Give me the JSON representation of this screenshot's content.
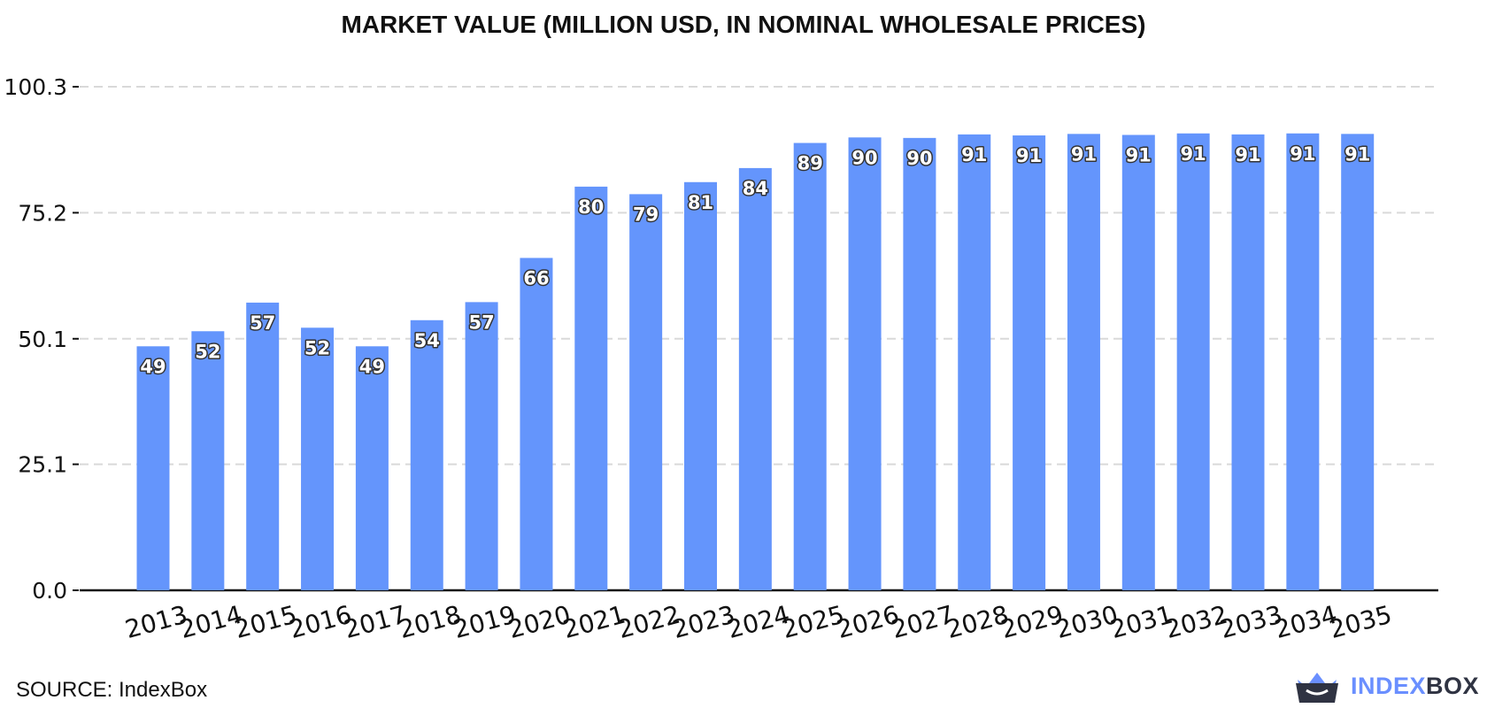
{
  "chart_data": {
    "type": "bar",
    "title": "MARKET VALUE (MILLION USD, IN NOMINAL WHOLESALE PRICES)",
    "xlabel": "",
    "ylabel": "",
    "categories": [
      "2013",
      "2014",
      "2015",
      "2016",
      "2017",
      "2018",
      "2019",
      "2020",
      "2021",
      "2022",
      "2023",
      "2024",
      "2025",
      "2026",
      "2027",
      "2028",
      "2029",
      "2030",
      "2031",
      "2032",
      "2033",
      "2034",
      "2035"
    ],
    "values": [
      49,
      52,
      57,
      52,
      49,
      54,
      57,
      66,
      80,
      79,
      81,
      84,
      89,
      90,
      90,
      91,
      91,
      91,
      91,
      91,
      91,
      91,
      91
    ],
    "bar_heights": [
      48.6,
      51.6,
      57.3,
      52.3,
      48.6,
      53.8,
      57.4,
      66.2,
      80.4,
      78.9,
      81.3,
      84.1,
      89.1,
      90.2,
      90.1,
      90.8,
      90.6,
      90.9,
      90.7,
      91.0,
      90.8,
      91.0,
      90.9
    ],
    "yticks": [
      "0.0",
      "25.1",
      "50.1",
      "75.2",
      "100.3"
    ],
    "ytick_values": [
      0,
      25.1,
      50.1,
      75.2,
      100.3
    ],
    "ylim": [
      0,
      100.3
    ],
    "grid": true,
    "legend": "none",
    "bar_color": "#6495fc"
  },
  "footer": {
    "source": "SOURCE: IndexBox",
    "brand_part1": "INDEX",
    "brand_part2": "BOX"
  }
}
